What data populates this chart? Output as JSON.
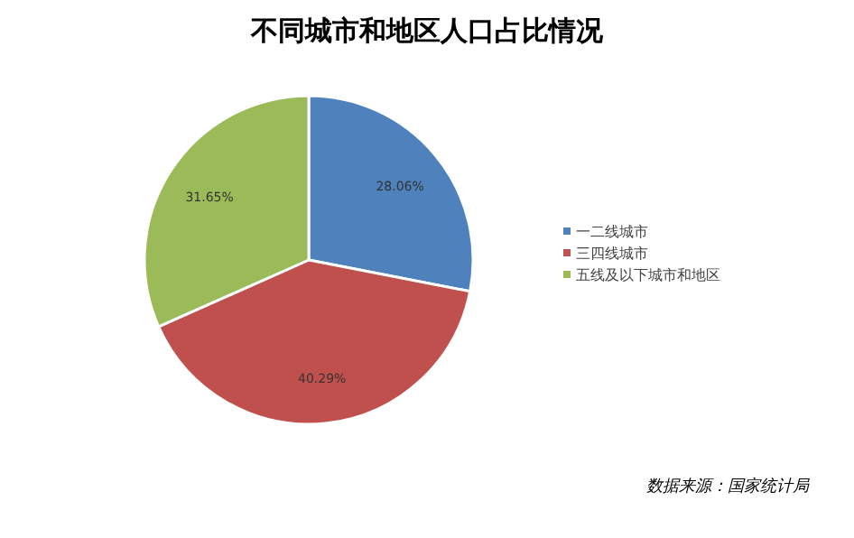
{
  "chart_data": {
    "type": "pie",
    "title": "不同城市和地区人口占比情况",
    "categories": [
      "一二线城市",
      "三四线城市",
      "五线及以下城市和地区"
    ],
    "values": [
      28.06,
      40.29,
      31.65
    ],
    "colors": [
      "#4f81bd",
      "#c0504d",
      "#9bbb59"
    ],
    "value_labels": [
      "28.06%",
      "40.29%",
      "31.65%"
    ],
    "legend": "right",
    "annotations": [
      "数据来源：国家统计局"
    ]
  }
}
